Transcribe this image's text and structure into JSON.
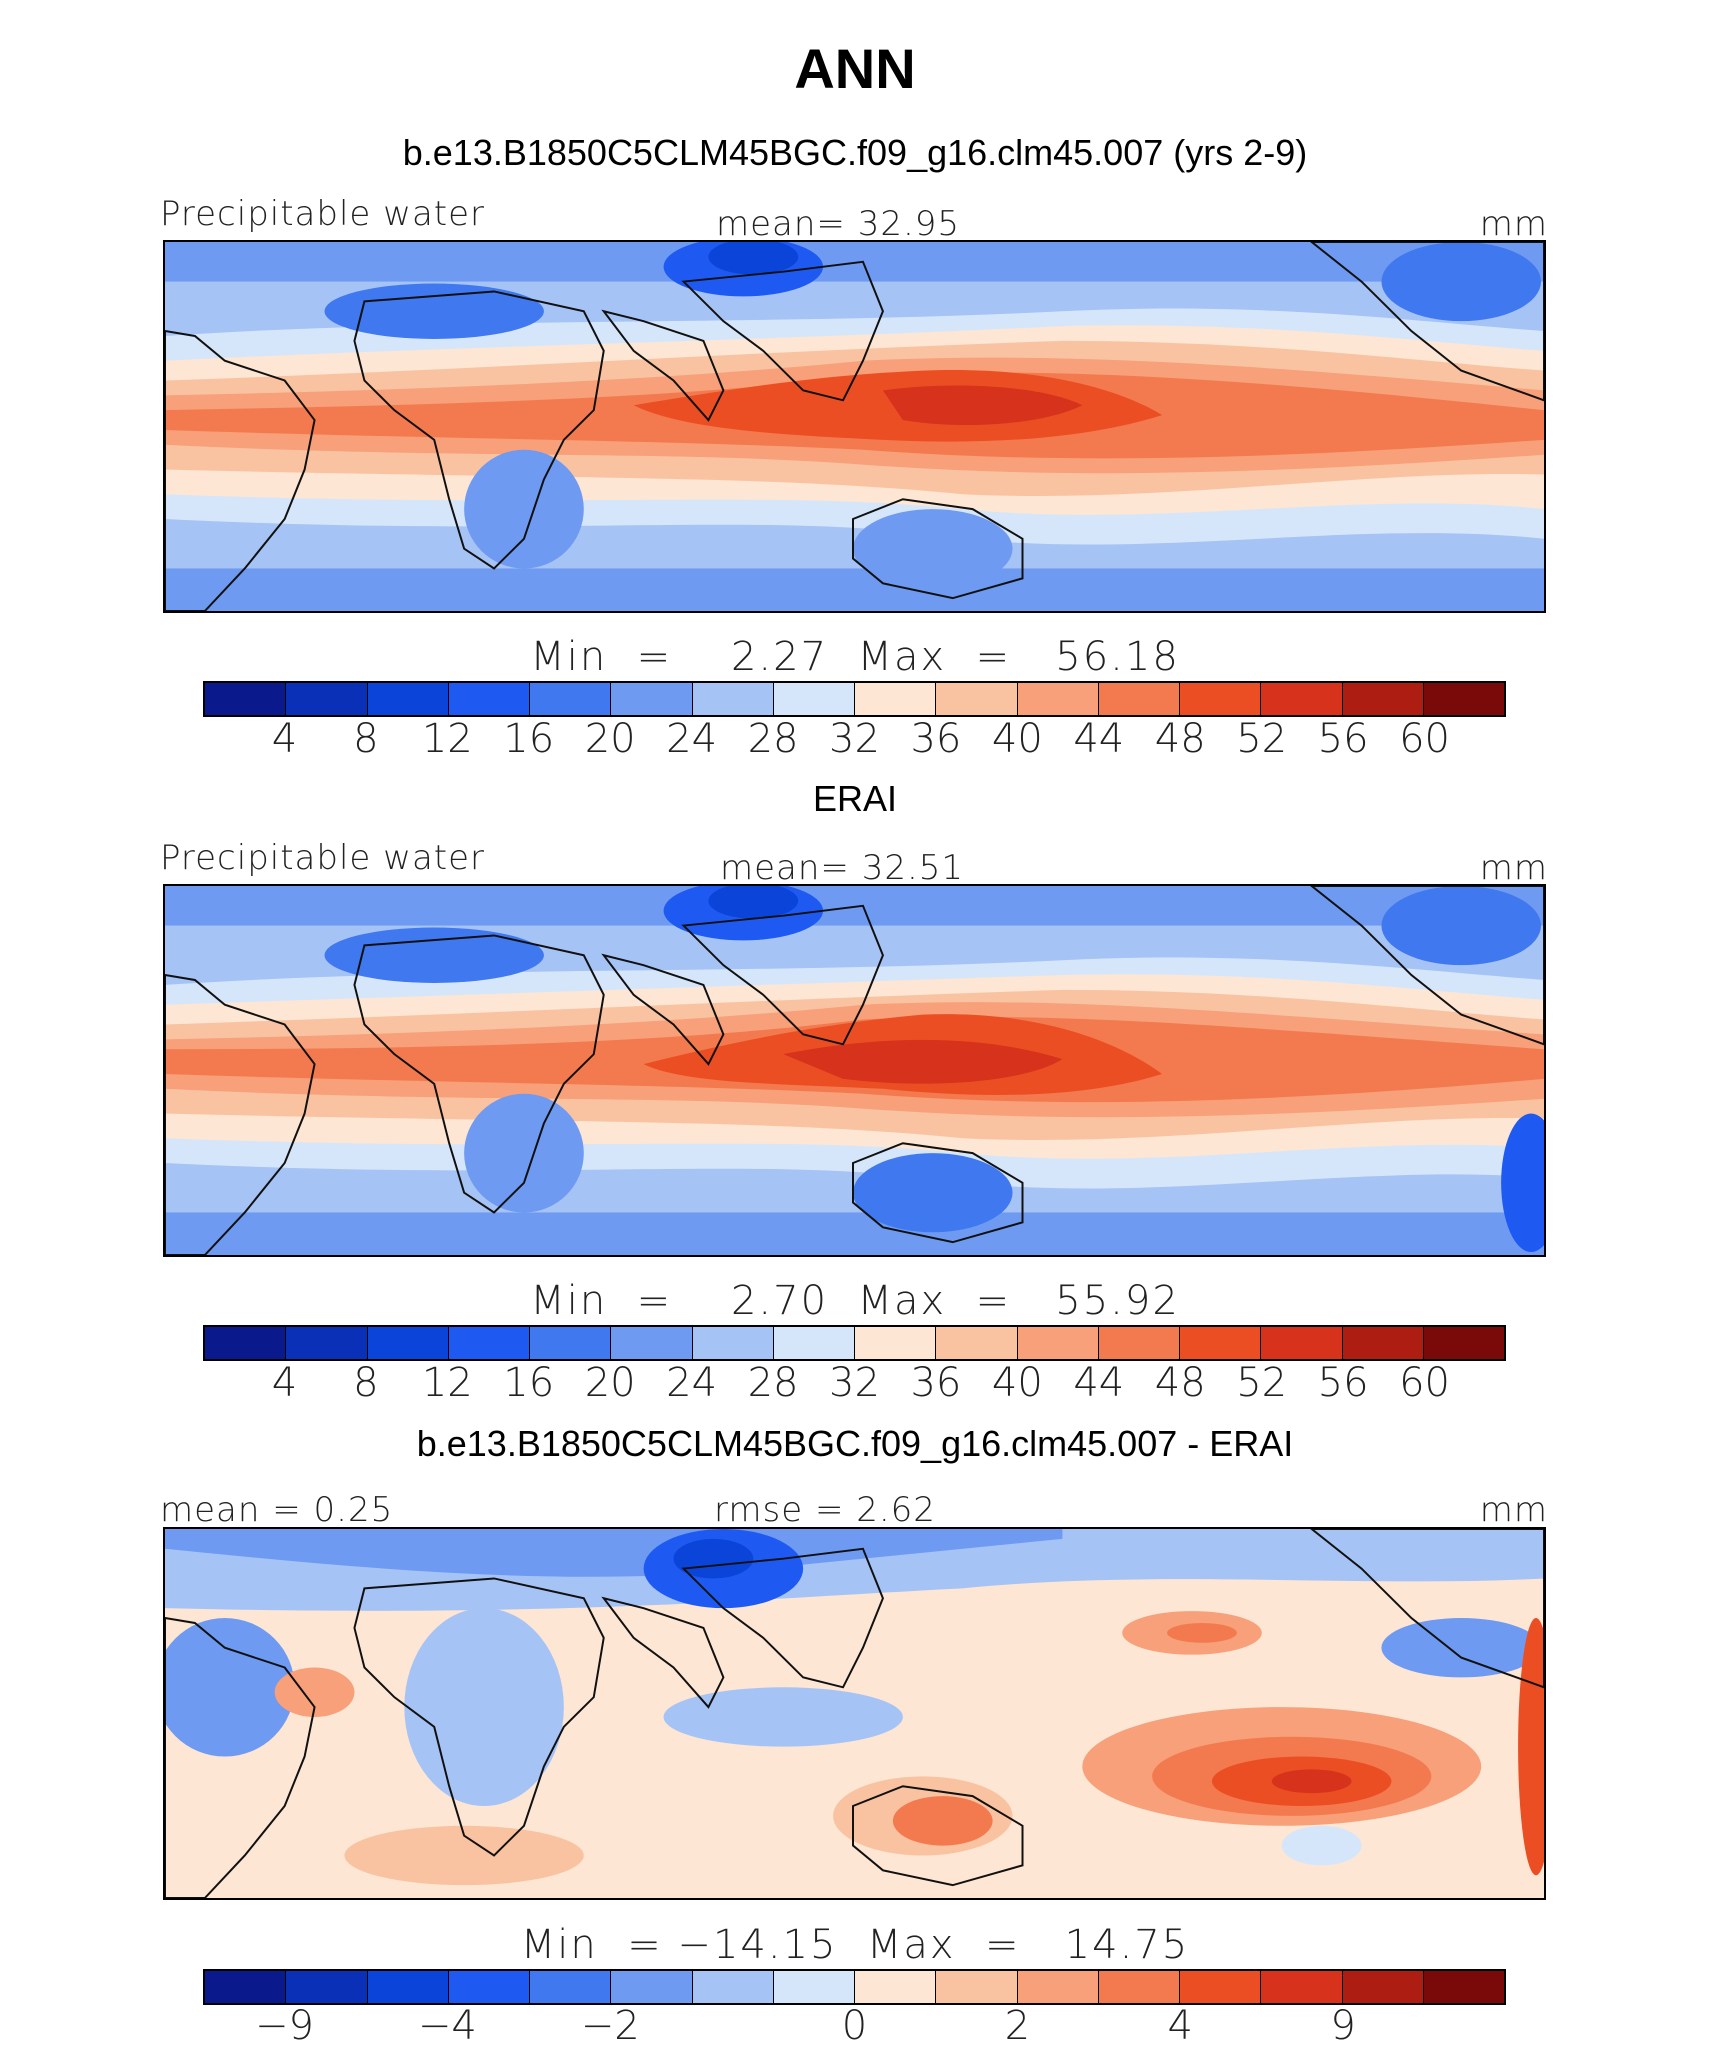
{
  "figure": {
    "season": "ANN",
    "model_title": "b.e13.B1850C5CLM45BGC.f09_g16.clm45.007 (yrs 2-9)",
    "obs_title": "ERAI",
    "diff_title": "b.e13.B1850C5CLM45BGC.f09_g16.clm45.007 - ERAI"
  },
  "panels": [
    {
      "id": "model",
      "variable": "Precipitable water",
      "stat": "mean=   32.95",
      "units": "mm",
      "min_max": "Min  =    2.27  Max  =   56.18"
    },
    {
      "id": "obs",
      "variable": "Precipitable water",
      "stat": "mean=   32.51",
      "units": "mm",
      "min_max": "Min  =    2.70  Max  =   55.92"
    },
    {
      "id": "diff",
      "mean": "mean =    0.25",
      "rmse": "rmse =    2.62",
      "units": "mm",
      "min_max": "Min  = −14.15  Max  =   14.75"
    }
  ],
  "colorbar_abs": {
    "colors": [
      "#0a1a8c",
      "#0b30b8",
      "#0a44d8",
      "#1e5af2",
      "#3f78ef",
      "#6e9af2",
      "#a6c3f5",
      "#d6e6fa",
      "#fde6d4",
      "#f9c3a2",
      "#f7a07a",
      "#f37a4e",
      "#ec4e23",
      "#d7321b",
      "#ad1d12",
      "#7a0a0a"
    ],
    "ticks": [
      "4",
      "8",
      "12",
      "16",
      "20",
      "24",
      "28",
      "32",
      "36",
      "40",
      "44",
      "48",
      "52",
      "56",
      "60"
    ]
  },
  "colorbar_diff": {
    "colors": [
      "#0a1a8c",
      "#0b30b8",
      "#0a44d8",
      "#1e5af2",
      "#3f78ef",
      "#6e9af2",
      "#a6c3f5",
      "#d6e6fa",
      "#fde6d4",
      "#f9c3a2",
      "#f7a07a",
      "#f37a4e",
      "#ec4e23",
      "#d7321b",
      "#ad1d12",
      "#7a0a0a"
    ],
    "ticks": [
      {
        "label": "−9",
        "boundary": 1
      },
      {
        "label": "−4",
        "boundary": 3
      },
      {
        "label": "−2",
        "boundary": 5
      },
      {
        "label": "0",
        "boundary": 8
      },
      {
        "label": "2",
        "boundary": 10
      },
      {
        "label": "4",
        "boundary": 12
      },
      {
        "label": "9",
        "boundary": 14
      }
    ]
  }
}
